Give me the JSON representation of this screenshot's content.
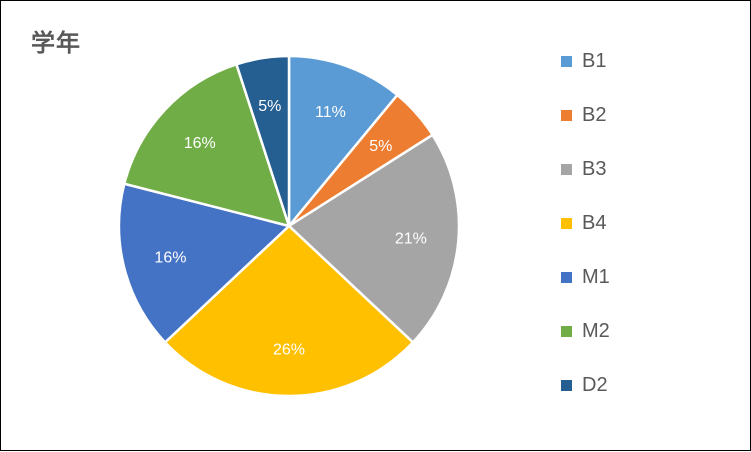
{
  "chart_data": {
    "type": "pie",
    "title": "学年",
    "categories": [
      "B1",
      "B2",
      "B3",
      "B4",
      "M1",
      "M2",
      "D2"
    ],
    "values": [
      11,
      5,
      21,
      26,
      16,
      16,
      5
    ],
    "data_labels": [
      "11%",
      "5%",
      "21%",
      "26%",
      "16%",
      "16%",
      "5%"
    ],
    "colors": [
      "#5B9BD5",
      "#ED7D31",
      "#A5A5A5",
      "#FFC000",
      "#4472C4",
      "#70AD47",
      "#255E91"
    ],
    "legend_position": "right"
  }
}
